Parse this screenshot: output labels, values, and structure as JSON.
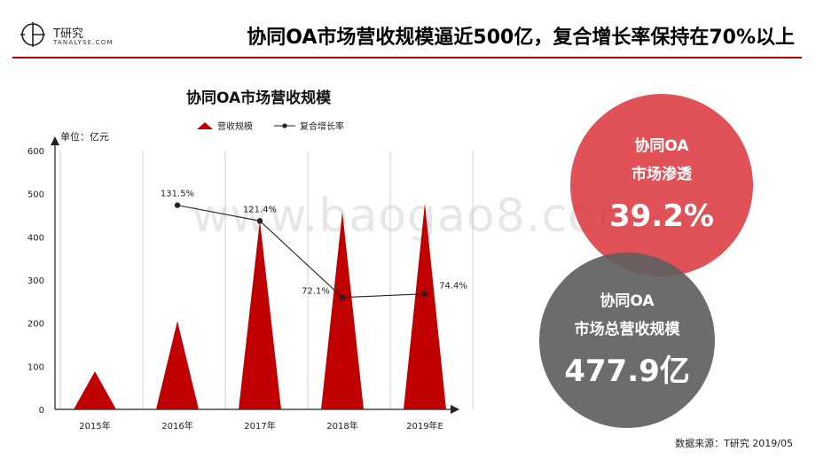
{
  "header": {
    "logo_brand": "T研究",
    "logo_sub": "TANALYSE.COM",
    "title": "协同OA市场营收规模逼近500亿，复合增长率保持在70%以上"
  },
  "chart_data": {
    "type": "bar",
    "title": "协同OA市场营收规模",
    "unit_label": "单位：亿元",
    "categories": [
      "2015年",
      "2016年",
      "2017年",
      "2018年",
      "2019年E"
    ],
    "ylim": [
      0,
      600
    ],
    "yticks": [
      "0",
      "100",
      "200",
      "300",
      "400",
      "500",
      "600"
    ],
    "grid": "vertical",
    "legend_position": "top",
    "series": [
      {
        "name": "营收规模",
        "type": "bar",
        "values": [
          88,
          205,
          438,
          458,
          478
        ],
        "color": "#c00000"
      },
      {
        "name": "复合增长率",
        "type": "line",
        "values": [
          null,
          131.5,
          121.4,
          72.1,
          74.4
        ],
        "labels": [
          "",
          "131.5%",
          "121.4%",
          "72.1%",
          "74.4%"
        ],
        "color": "#222222"
      }
    ]
  },
  "bubbles": {
    "penetration": {
      "label_line1": "协同OA",
      "label_line2": "市场渗透",
      "value": "39.2%",
      "color": "#dc3a40"
    },
    "market_size": {
      "label_line1": "协同OA",
      "label_line2": "市场总营收规模",
      "value": "477.9亿",
      "color": "#606060"
    }
  },
  "source": "数据来源：T研究 2019/05",
  "watermark": "www.baogao8.com"
}
